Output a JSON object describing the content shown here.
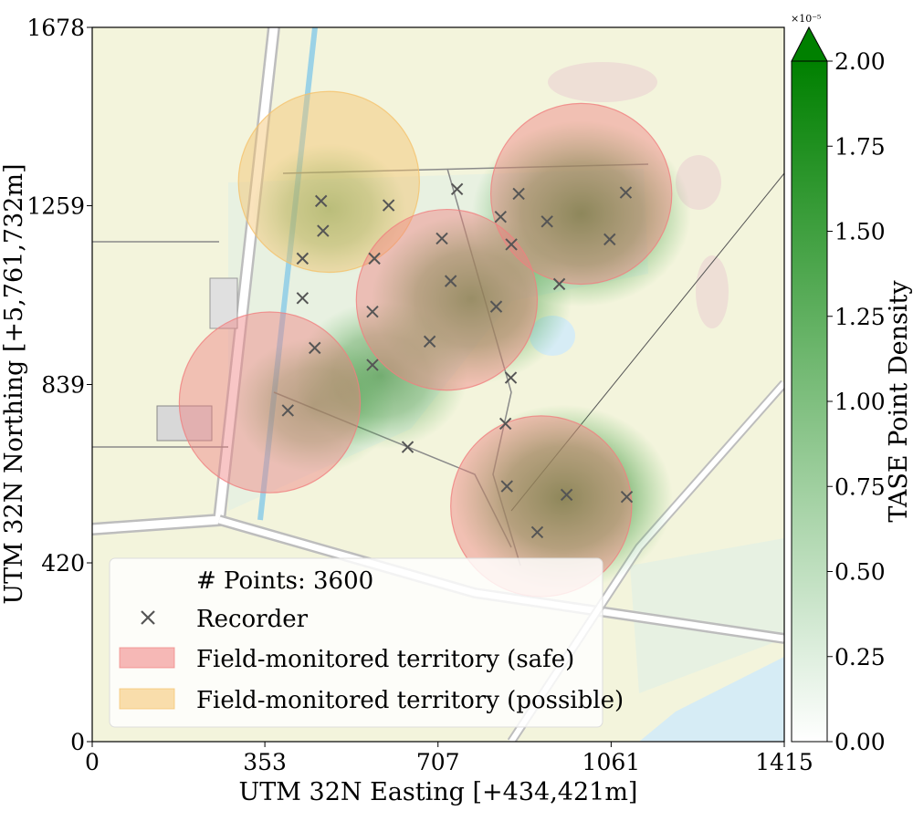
{
  "chart_data": {
    "type": "scatter",
    "title": "",
    "xlabel": "UTM 32N Easting [+434,421m]",
    "ylabel": "UTM 32N Northing [+5,761,732m]",
    "xlim": [
      0,
      1415
    ],
    "ylim": [
      0,
      1678
    ],
    "x_ticks": [
      "0",
      "353",
      "707",
      "1061",
      "1415"
    ],
    "y_ticks": [
      "0",
      "420",
      "839",
      "1259",
      "1678"
    ],
    "background": "topographic map",
    "legend": {
      "placement": "lower-left",
      "points_label": "# Points: 3600",
      "recorder_label": "Recorder",
      "safe_label": "Field-monitored territory (safe)",
      "possible_label": "Field-monitored territory (possible)"
    },
    "recorders": [
      {
        "x": 468,
        "y": 1270
      },
      {
        "x": 606,
        "y": 1260
      },
      {
        "x": 746,
        "y": 1298
      },
      {
        "x": 472,
        "y": 1200
      },
      {
        "x": 430,
        "y": 1135
      },
      {
        "x": 715,
        "y": 1182
      },
      {
        "x": 577,
        "y": 1135
      },
      {
        "x": 733,
        "y": 1082
      },
      {
        "x": 430,
        "y": 1042
      },
      {
        "x": 573,
        "y": 1010
      },
      {
        "x": 690,
        "y": 940
      },
      {
        "x": 455,
        "y": 925
      },
      {
        "x": 573,
        "y": 885
      },
      {
        "x": 856,
        "y": 855
      },
      {
        "x": 400,
        "y": 778
      },
      {
        "x": 645,
        "y": 692
      },
      {
        "x": 845,
        "y": 747
      },
      {
        "x": 848,
        "y": 600
      },
      {
        "x": 970,
        "y": 580
      },
      {
        "x": 1093,
        "y": 575
      },
      {
        "x": 910,
        "y": 492
      },
      {
        "x": 872,
        "y": 1287
      },
      {
        "x": 835,
        "y": 1233
      },
      {
        "x": 857,
        "y": 1168
      },
      {
        "x": 930,
        "y": 1222
      },
      {
        "x": 1091,
        "y": 1290
      },
      {
        "x": 1058,
        "y": 1180
      },
      {
        "x": 955,
        "y": 1075
      },
      {
        "x": 826,
        "y": 1022
      }
    ],
    "territories": [
      {
        "status": "possible",
        "cx": 484,
        "cy": 1315,
        "r": 185
      },
      {
        "status": "safe",
        "cx": 1000,
        "cy": 1287,
        "r": 185
      },
      {
        "status": "safe",
        "cx": 725,
        "cy": 1038,
        "r": 185
      },
      {
        "status": "safe",
        "cx": 363,
        "cy": 797,
        "r": 185
      },
      {
        "status": "safe",
        "cx": 918,
        "cy": 553,
        "r": 185
      }
    ],
    "density": [
      {
        "x": 1000,
        "y": 1240,
        "peak": 2.0
      },
      {
        "x": 775,
        "y": 1040,
        "peak": 1.6
      },
      {
        "x": 963,
        "y": 573,
        "peak": 2.0
      },
      {
        "x": 590,
        "y": 860,
        "peak": 1.0
      },
      {
        "x": 453,
        "y": 790,
        "peak": 0.7
      },
      {
        "x": 485,
        "y": 1250,
        "peak": 0.6
      }
    ],
    "colorbar": {
      "label": "TASE Point Density",
      "ticks": [
        "0.00",
        "0.25",
        "0.50",
        "0.75",
        "1.00",
        "1.25",
        "1.50",
        "1.75",
        "2.00"
      ],
      "range": [
        0,
        2.0
      ],
      "multiplier": "×10⁻⁵",
      "cmap_low": "#ffffff",
      "cmap_high": "#008000"
    },
    "colors": {
      "safe": "#f08080",
      "possible": "#f5c26b",
      "recorder": "#555555",
      "map_bg": "#f3f4dc"
    }
  }
}
